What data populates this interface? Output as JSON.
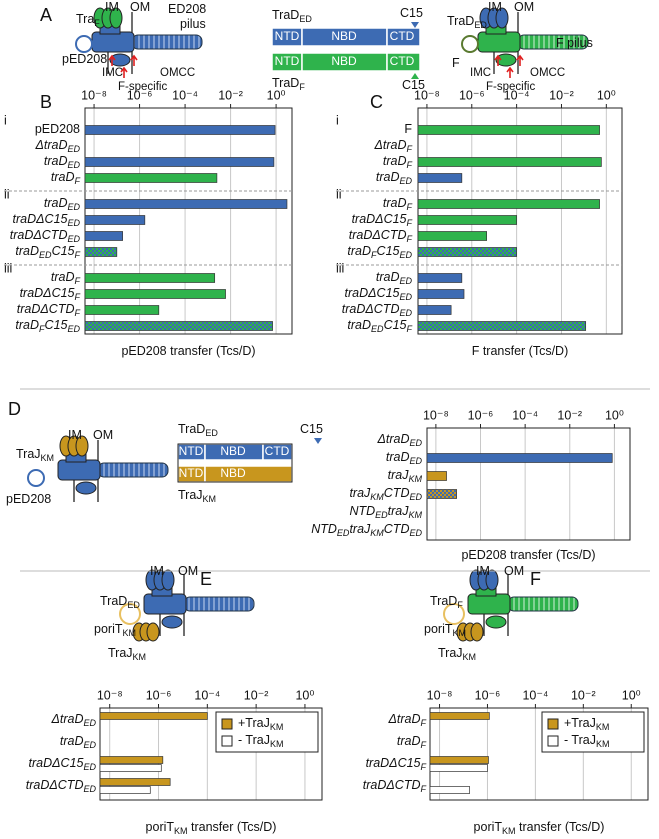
{
  "panels": {
    "A": {
      "letter": "A",
      "labels": [
        [
          "Tra",
          "F"
        ],
        [
          "IM"
        ],
        [
          "OM"
        ],
        [
          "ED208"
        ],
        [
          "pilus"
        ],
        [
          "pED208"
        ],
        [
          "IMC"
        ],
        [
          "F-specific"
        ],
        [
          "OMCC"
        ],
        [
          "TraD",
          "ED"
        ],
        [
          "NTD"
        ],
        [
          "NBD"
        ],
        [
          "CTD"
        ],
        [
          "C15"
        ],
        [
          "NTD"
        ],
        [
          "NBD"
        ],
        [
          "CTD"
        ],
        [
          "TraD",
          "F"
        ],
        [
          "C15"
        ],
        [
          "TraD",
          "ED"
        ],
        [
          "IM"
        ],
        [
          "OM"
        ],
        [
          "F pilus"
        ],
        [
          "F"
        ],
        [
          "IMC"
        ],
        [
          "F-specific"
        ],
        [
          "OMCC"
        ]
      ]
    },
    "D": {
      "letter": "D",
      "labels": [
        [
          "IM"
        ],
        [
          "OM"
        ],
        [
          "TraJ",
          "KM"
        ],
        [
          "pED208"
        ],
        [
          "TraD",
          "ED"
        ],
        [
          "NTD"
        ],
        [
          "NBD"
        ],
        [
          "CTD"
        ],
        [
          "C15"
        ],
        [
          "NTD"
        ],
        [
          "NBD"
        ],
        [
          "TraJ",
          "KM"
        ]
      ]
    },
    "E": {
      "letter": "E",
      "labels": [
        [
          "IM"
        ],
        [
          "OM"
        ],
        [
          "TraD",
          "ED"
        ],
        [
          "poriT",
          "KM"
        ],
        [
          "TraJ",
          "KM"
        ]
      ]
    },
    "F": {
      "letter": "F",
      "labels": [
        [
          "IM"
        ],
        [
          "OM"
        ],
        [
          "TraD",
          "F"
        ],
        [
          "poriT",
          "KM"
        ],
        [
          "TraJ",
          "KM"
        ]
      ]
    }
  },
  "chart_data": [
    {
      "panel": "B",
      "type": "bar",
      "orientation": "horizontal",
      "x_scale": "log",
      "grid": true,
      "xlabel": [
        "pED208 transfer (Tcs/D)"
      ],
      "xlim": [
        4e-09,
        5
      ],
      "xticks": [
        {
          "value": 1e-08,
          "label": "10⁻⁸"
        },
        {
          "value": 1e-06,
          "label": "10⁻⁶"
        },
        {
          "value": 0.0001,
          "label": "10⁻⁴"
        },
        {
          "value": 0.01,
          "label": "10⁻²"
        },
        {
          "value": 1,
          "label": "10⁰"
        }
      ],
      "groups": [
        "i",
        "ii",
        "iii"
      ],
      "upright_categories": [
        0
      ],
      "categories": [
        [
          "pED208"
        ],
        [
          "ΔtraD",
          "ED"
        ],
        [
          "traD",
          "ED"
        ],
        [
          "traD",
          "F"
        ],
        [
          "traD",
          "ED"
        ],
        [
          "traDΔC15",
          "ED"
        ],
        [
          "traDΔCTD",
          "ED"
        ],
        [
          "traD",
          "ED",
          "C15",
          "F"
        ],
        [
          "traD",
          "F"
        ],
        [
          "traDΔC15",
          "F"
        ],
        [
          "traDΔCTD",
          "F"
        ],
        [
          "traD",
          "F",
          "C15",
          "ED"
        ]
      ],
      "values": [
        0.9,
        null,
        0.8,
        0.0025,
        3,
        1.7e-06,
        1.8e-07,
        1e-07,
        0.002,
        0.006,
        7e-06,
        0.7
      ],
      "colors": [
        "#3d6bb3",
        "#3d6bb3",
        "#3d6bb3",
        "#2fb34c",
        "#3d6bb3",
        "#3d6bb3",
        "#3d6bb3",
        [
          "#3d6bb3",
          "#2fb34c"
        ],
        "#2fb34c",
        "#2fb34c",
        "#2fb34c",
        [
          "#2fb34c",
          "#3d6bb3"
        ]
      ]
    },
    {
      "panel": "C",
      "type": "bar",
      "orientation": "horizontal",
      "x_scale": "log",
      "grid": true,
      "xlabel": [
        "F transfer (Tcs/D)"
      ],
      "xlim": [
        4e-09,
        5
      ],
      "xticks": [
        {
          "value": 1e-08,
          "label": "10⁻⁸"
        },
        {
          "value": 1e-06,
          "label": "10⁻⁶"
        },
        {
          "value": 0.0001,
          "label": "10⁻⁴"
        },
        {
          "value": 0.01,
          "label": "10⁻²"
        },
        {
          "value": 1,
          "label": "10⁰"
        }
      ],
      "groups": [
        "i",
        "ii",
        "iii"
      ],
      "upright_categories": [
        0
      ],
      "categories": [
        [
          "F"
        ],
        [
          "ΔtraD",
          "F"
        ],
        [
          "traD",
          "F"
        ],
        [
          "traD",
          "ED"
        ],
        [
          "traD",
          "F"
        ],
        [
          "traDΔC15",
          "F"
        ],
        [
          "traDΔCTD",
          "F"
        ],
        [
          "traD",
          "F",
          "C15",
          "ED"
        ],
        [
          "traD",
          "ED"
        ],
        [
          "traDΔC15",
          "ED"
        ],
        [
          "traDΔCTD",
          "ED"
        ],
        [
          "traD",
          "ED",
          "C15",
          "F"
        ]
      ],
      "values": [
        0.5,
        null,
        0.6,
        3.6e-07,
        0.5,
        0.0001,
        4.6e-06,
        0.0001,
        3.6e-07,
        4.5e-07,
        1.2e-07,
        0.12
      ],
      "colors": [
        "#2fb34c",
        "#2fb34c",
        "#2fb34c",
        "#3d6bb3",
        "#2fb34c",
        "#2fb34c",
        "#2fb34c",
        [
          "#2fb34c",
          "#3d6bb3"
        ],
        "#3d6bb3",
        "#3d6bb3",
        "#3d6bb3",
        [
          "#3d6bb3",
          "#2fb34c"
        ]
      ]
    },
    {
      "panel": "D",
      "type": "bar",
      "orientation": "horizontal",
      "x_scale": "log",
      "grid": true,
      "xlabel": [
        "pED208 transfer (Tcs/D)"
      ],
      "xlim": [
        4e-09,
        5
      ],
      "xticks": [
        {
          "value": 1e-08,
          "label": "10⁻⁸"
        },
        {
          "value": 1e-06,
          "label": "10⁻⁶"
        },
        {
          "value": 0.0001,
          "label": "10⁻⁴"
        },
        {
          "value": 0.01,
          "label": "10⁻²"
        },
        {
          "value": 1,
          "label": "10⁰"
        }
      ],
      "categories": [
        [
          "ΔtraD",
          "ED"
        ],
        [
          "traD",
          "ED"
        ],
        [
          "traJ",
          "KM"
        ],
        [
          "traJ",
          "KM",
          "CTD",
          "ED"
        ],
        [
          "NTD",
          "ED",
          "traJ",
          "KM"
        ],
        [
          "NTD",
          "ED",
          "traJ",
          "KM",
          "CTD",
          "ED"
        ]
      ],
      "values": [
        null,
        0.8,
        3e-08,
        8.5e-08,
        null,
        null
      ],
      "colors": [
        "#3d6bb3",
        "#3d6bb3",
        "#c8961e",
        [
          "#c8961e",
          "#3d6bb3"
        ],
        "#c8961e",
        "#c8961e"
      ]
    },
    {
      "panel": "E",
      "type": "grouped_bar",
      "orientation": "horizontal",
      "x_scale": "log",
      "grid": true,
      "legend": "upper right",
      "xlabel": [
        "poriT",
        "KM",
        " transfer (Tcs/D)"
      ],
      "xlim": [
        4e-09,
        5
      ],
      "xticks": [
        {
          "value": 1e-08,
          "label": "10⁻⁸"
        },
        {
          "value": 1e-06,
          "label": "10⁻⁶"
        },
        {
          "value": 0.0001,
          "label": "10⁻⁴"
        },
        {
          "value": 0.01,
          "label": "10⁻²"
        },
        {
          "value": 1,
          "label": "10⁰"
        }
      ],
      "categories": [
        [
          "ΔtraD",
          "ED"
        ],
        [
          "traD",
          "ED"
        ],
        [
          "traDΔC15",
          "ED"
        ],
        [
          "traDΔCTD",
          "ED"
        ]
      ],
      "series": [
        {
          "name": [
            "+TraJ",
            "KM"
          ],
          "color": "#c8961e",
          "values": [
            0.0001,
            null,
            1.5e-06,
            3e-06
          ]
        },
        {
          "name": [
            "- TraJ",
            "KM"
          ],
          "color": "#ffffff",
          "values": [
            null,
            null,
            1.3e-06,
            4.6e-07
          ]
        }
      ]
    },
    {
      "panel": "F",
      "type": "grouped_bar",
      "orientation": "horizontal",
      "x_scale": "log",
      "grid": true,
      "legend": "upper right",
      "xlabel": [
        "poriT",
        "KM",
        " transfer (Tcs/D)"
      ],
      "xlim": [
        4e-09,
        5
      ],
      "xticks": [
        {
          "value": 1e-08,
          "label": "10⁻⁸"
        },
        {
          "value": 1e-06,
          "label": "10⁻⁶"
        },
        {
          "value": 0.0001,
          "label": "10⁻⁴"
        },
        {
          "value": 0.01,
          "label": "10⁻²"
        },
        {
          "value": 1,
          "label": "10⁰"
        }
      ],
      "categories": [
        [
          "ΔtraD",
          "F"
        ],
        [
          "traD",
          "F"
        ],
        [
          "traDΔC15",
          "F"
        ],
        [
          "traDΔCTD",
          "F"
        ]
      ],
      "series": [
        {
          "name": [
            "+TraJ",
            "KM"
          ],
          "color": "#c8961e",
          "values": [
            1.2e-06,
            null,
            1.1e-06,
            null
          ]
        },
        {
          "name": [
            "- TraJ",
            "KM"
          ],
          "color": "#ffffff",
          "values": [
            null,
            null,
            1e-06,
            1.8e-07
          ]
        }
      ]
    }
  ]
}
